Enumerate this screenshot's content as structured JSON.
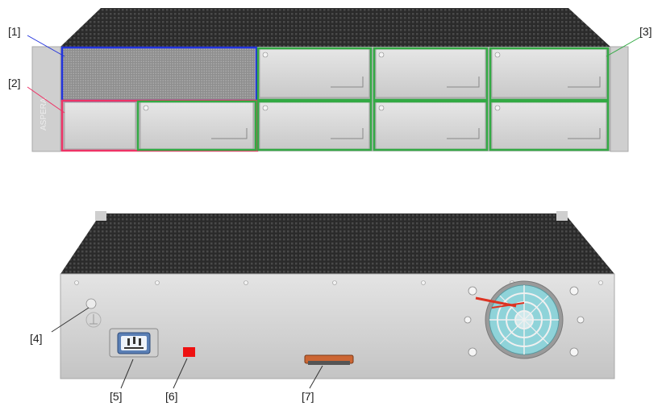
{
  "callouts": {
    "c1": "[1]",
    "c2": "[2]",
    "c3": "[3]",
    "c4": "[4]",
    "c5": "[5]",
    "c6": "[6]",
    "c7": "[7]"
  },
  "colors": {
    "callout_1_outline": "#2233dd",
    "callout_2_outline": "#ee3366",
    "callout_3_outline": "#33aa44",
    "status_led": "#ee1111",
    "fan_guard": "#8fd3d9",
    "fan_warning": "#dd3322",
    "serial_connector": "#cc6633",
    "chassis_panel": "#d8d8d8",
    "chassis_top": "#2a2a2a"
  },
  "icons": {
    "front_view": "rack-chassis-front-illustration",
    "rear_view": "rack-chassis-rear-illustration",
    "ground_point": "ground-screw-icon",
    "power_inlet": "power-inlet-icon",
    "led": "status-led-icon",
    "fan": "fan-icon",
    "serial": "serial-port-icon"
  }
}
